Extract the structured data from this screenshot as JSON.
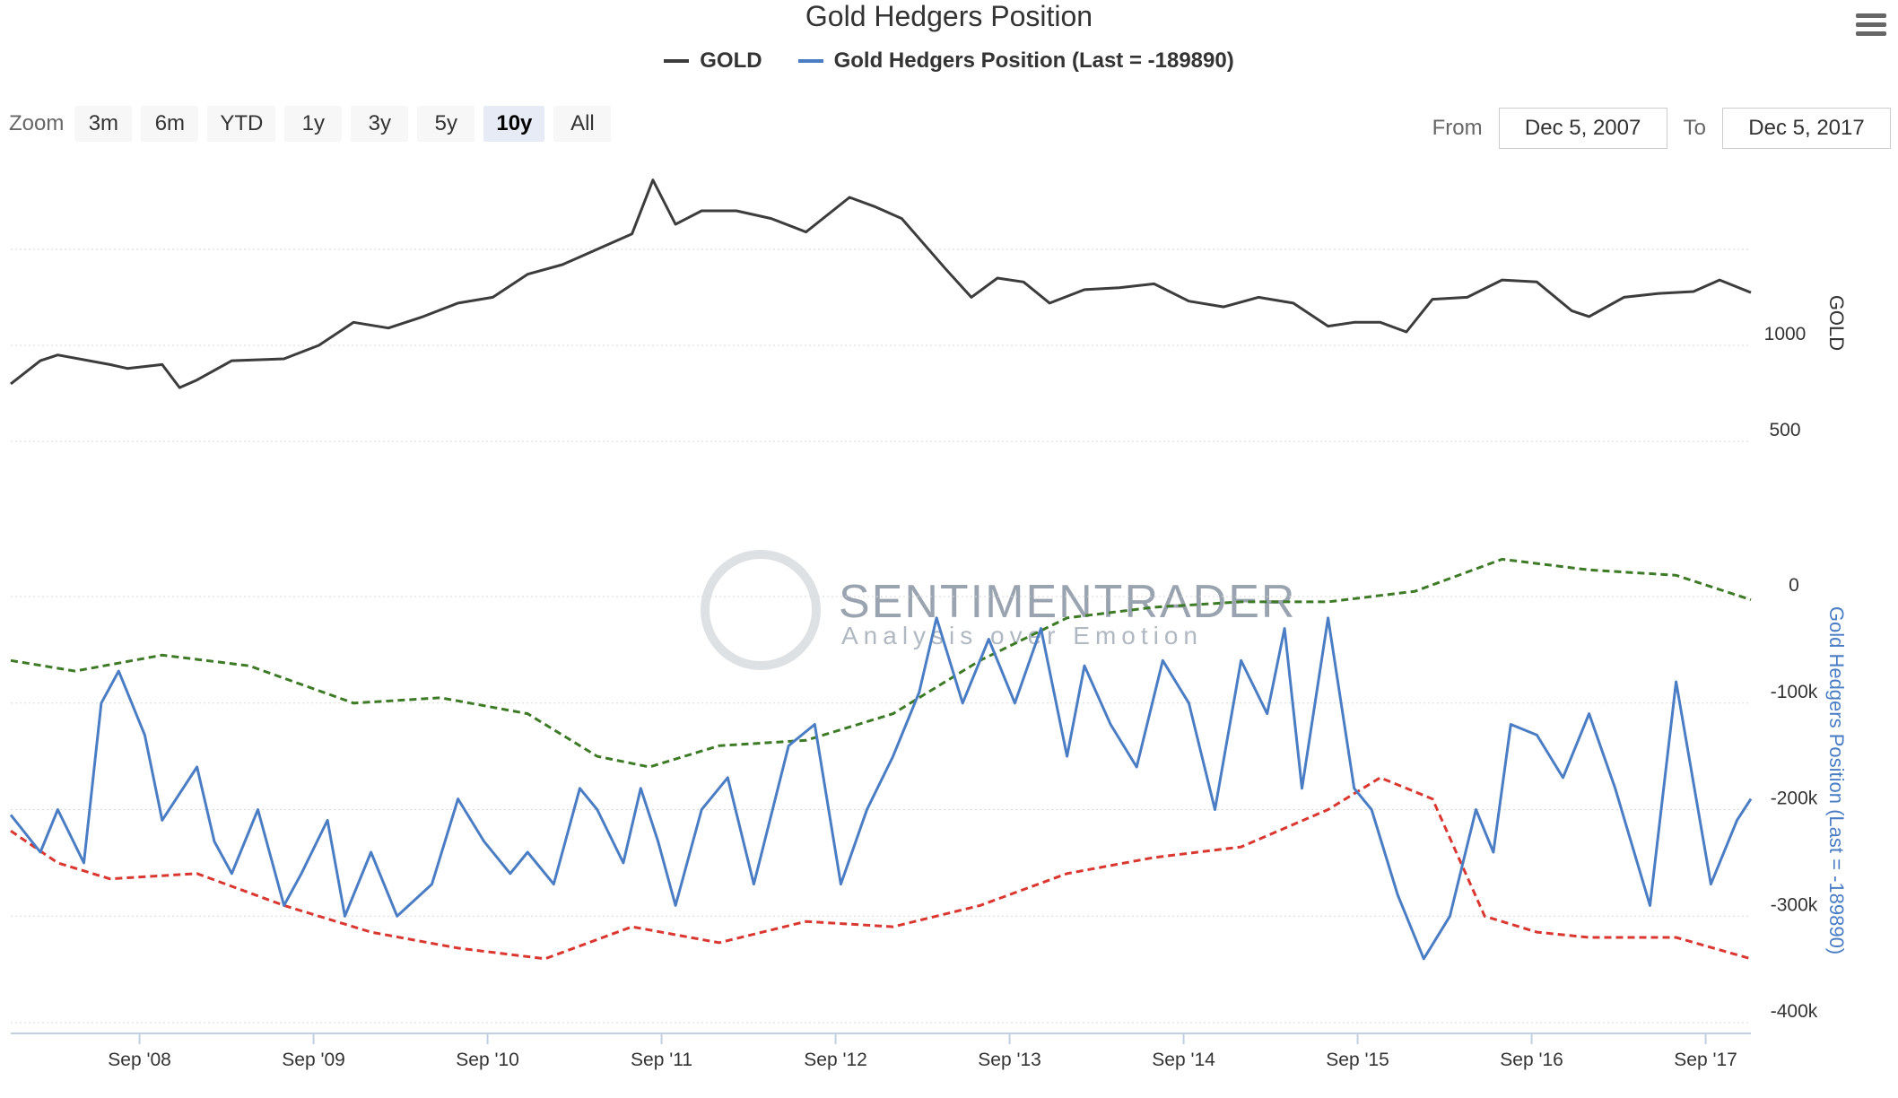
{
  "chart_title": "Gold Hedgers Position",
  "legend": [
    {
      "label": "GOLD",
      "color": "#3c3c3c"
    },
    {
      "label": "Gold Hedgers Position (Last = -189890)",
      "color": "#4a7dc4"
    }
  ],
  "toolbar": {
    "zoom_label": "Zoom",
    "zoom_buttons": [
      "3m",
      "6m",
      "YTD",
      "1y",
      "3y",
      "5y",
      "10y",
      "All"
    ],
    "active_zoom": "10y",
    "from_label": "From",
    "from_value": "Dec 5, 2007",
    "to_label": "To",
    "to_value": "Dec 5, 2017",
    "menu_icon": "hamburger-menu-icon"
  },
  "watermark": {
    "line1": "SENTIMENTRADER",
    "line2": "Analysis over Emotion"
  },
  "chart_data": {
    "type": "line",
    "x_ticks": [
      "Sep '08",
      "Sep '09",
      "Sep '10",
      "Sep '11",
      "Sep '12",
      "Sep '13",
      "Sep '14",
      "Sep '15",
      "Sep '16",
      "Sep '17"
    ],
    "x_range": [
      2007.93,
      2017.93
    ],
    "grid": true,
    "panels": [
      {
        "name": "gold",
        "ylabel": "GOLD",
        "y_ticks": [
          "1000",
          "500"
        ],
        "ylim": [
          300,
          2050
        ],
        "series": [
          {
            "name": "GOLD",
            "color": "#3c3c3c",
            "x": [
              2007.93,
              2008.1,
              2008.2,
              2008.5,
              2008.6,
              2008.8,
              2008.9,
              2009.0,
              2009.2,
              2009.5,
              2009.7,
              2009.9,
              2010.1,
              2010.3,
              2010.5,
              2010.7,
              2010.9,
              2011.1,
              2011.3,
              2011.5,
              2011.62,
              2011.75,
              2011.9,
              2012.1,
              2012.3,
              2012.5,
              2012.75,
              2012.9,
              2013.05,
              2013.3,
              2013.45,
              2013.6,
              2013.75,
              2013.9,
              2014.1,
              2014.3,
              2014.5,
              2014.7,
              2014.9,
              2015.1,
              2015.3,
              2015.5,
              2015.65,
              2015.8,
              2015.95,
              2016.1,
              2016.3,
              2016.5,
              2016.7,
              2016.9,
              2017.0,
              2017.2,
              2017.4,
              2017.6,
              2017.75,
              2017.93
            ],
            "values": [
              800,
              920,
              950,
              900,
              880,
              900,
              780,
              820,
              920,
              930,
              1000,
              1120,
              1090,
              1150,
              1220,
              1250,
              1370,
              1420,
              1500,
              1580,
              1860,
              1630,
              1700,
              1700,
              1660,
              1590,
              1770,
              1720,
              1660,
              1400,
              1250,
              1350,
              1330,
              1220,
              1290,
              1300,
              1320,
              1230,
              1200,
              1250,
              1220,
              1100,
              1120,
              1120,
              1070,
              1240,
              1250,
              1340,
              1330,
              1180,
              1150,
              1250,
              1270,
              1280,
              1340,
              1275
            ]
          }
        ]
      },
      {
        "name": "hedgers",
        "ylabel": "Gold Hedgers Position (Last = -189890)",
        "y_ticks": [
          "0",
          "-100k",
          "-200k",
          "-300k",
          "-400k"
        ],
        "ylim": [
          -400000,
          0
        ],
        "series": [
          {
            "name": "Gold Hedgers Position",
            "color": "#4a7dc4",
            "x": [
              2007.93,
              2008.1,
              2008.2,
              2008.35,
              2008.45,
              2008.55,
              2008.7,
              2008.8,
              2009.0,
              2009.1,
              2009.2,
              2009.35,
              2009.5,
              2009.6,
              2009.75,
              2009.85,
              2010.0,
              2010.15,
              2010.35,
              2010.5,
              2010.65,
              2010.8,
              2010.9,
              2011.05,
              2011.2,
              2011.3,
              2011.45,
              2011.55,
              2011.65,
              2011.75,
              2011.9,
              2012.05,
              2012.2,
              2012.4,
              2012.55,
              2012.7,
              2012.85,
              2013.0,
              2013.15,
              2013.25,
              2013.4,
              2013.55,
              2013.7,
              2013.85,
              2014.0,
              2014.1,
              2014.25,
              2014.4,
              2014.55,
              2014.7,
              2014.85,
              2015.0,
              2015.15,
              2015.25,
              2015.35,
              2015.5,
              2015.65,
              2015.75,
              2015.9,
              2016.05,
              2016.2,
              2016.35,
              2016.45,
              2016.55,
              2016.7,
              2016.85,
              2017.0,
              2017.15,
              2017.35,
              2017.5,
              2017.7,
              2017.85,
              2017.93
            ],
            "values": [
              -205000,
              -240000,
              -200000,
              -250000,
              -100000,
              -70000,
              -130000,
              -210000,
              -160000,
              -230000,
              -260000,
              -200000,
              -290000,
              -260000,
              -210000,
              -300000,
              -240000,
              -300000,
              -270000,
              -190000,
              -230000,
              -260000,
              -240000,
              -270000,
              -180000,
              -200000,
              -250000,
              -180000,
              -230000,
              -290000,
              -200000,
              -170000,
              -270000,
              -140000,
              -120000,
              -270000,
              -200000,
              -150000,
              -90000,
              -20000,
              -100000,
              -40000,
              -100000,
              -30000,
              -150000,
              -65000,
              -120000,
              -160000,
              -60000,
              -100000,
              -200000,
              -60000,
              -110000,
              -30000,
              -180000,
              -20000,
              -180000,
              -200000,
              -280000,
              -340000,
              -300000,
              -200000,
              -240000,
              -120000,
              -130000,
              -170000,
              -110000,
              -180000,
              -290000,
              -80000,
              -270000,
              -210000,
              -190000
            ]
          },
          {
            "name": "Upper band",
            "color": "#3d7a25",
            "x": [
              2007.93,
              2008.3,
              2008.8,
              2009.3,
              2009.9,
              2010.4,
              2010.9,
              2011.3,
              2011.6,
              2012.0,
              2012.5,
              2013.0,
              2013.5,
              2014.0,
              2014.5,
              2015.0,
              2015.5,
              2016.0,
              2016.5,
              2017.0,
              2017.5,
              2017.93
            ],
            "values": [
              -60000,
              -70000,
              -55000,
              -65000,
              -100000,
              -95000,
              -110000,
              -150000,
              -160000,
              -140000,
              -135000,
              -110000,
              -60000,
              -20000,
              -10000,
              -5000,
              -5000,
              5000,
              35000,
              25000,
              20000,
              -3000
            ]
          },
          {
            "name": "Lower band",
            "color": "#d9372f",
            "x": [
              2007.93,
              2008.2,
              2008.5,
              2009.0,
              2009.5,
              2010.0,
              2010.5,
              2011.0,
              2011.5,
              2012.0,
              2012.5,
              2013.0,
              2013.5,
              2014.0,
              2014.5,
              2015.0,
              2015.5,
              2015.8,
              2016.1,
              2016.4,
              2016.7,
              2017.0,
              2017.5,
              2017.93
            ],
            "values": [
              -220000,
              -250000,
              -265000,
              -260000,
              -290000,
              -315000,
              -330000,
              -340000,
              -310000,
              -325000,
              -305000,
              -310000,
              -290000,
              -260000,
              -245000,
              -235000,
              -200000,
              -170000,
              -190000,
              -300000,
              -315000,
              -320000,
              -320000,
              -340000
            ]
          }
        ]
      }
    ]
  }
}
